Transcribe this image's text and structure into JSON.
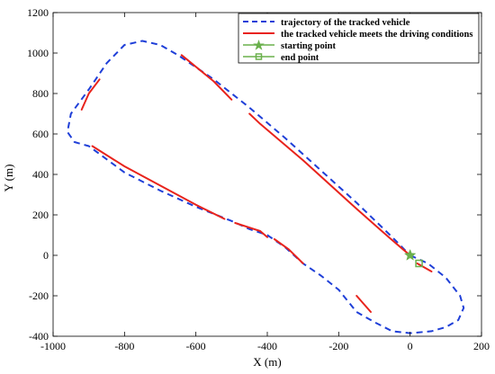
{
  "chart_data": {
    "type": "line",
    "xlabel": "X (m)",
    "ylabel": "Y (m)",
    "xlim": [
      -1000,
      200
    ],
    "ylim": [
      -400,
      1200
    ],
    "xticks": [
      -1000,
      -800,
      -600,
      -400,
      -200,
      0,
      200
    ],
    "yticks": [
      -400,
      -200,
      0,
      200,
      400,
      600,
      800,
      1000,
      1200
    ],
    "legend_position": "top-right",
    "series": [
      {
        "name": "trajectory of the tracked vehicle",
        "style": "dashed",
        "color": "#1f3fd8",
        "points": [
          [
            0,
            0
          ],
          [
            50,
            -40
          ],
          [
            100,
            -110
          ],
          [
            140,
            -200
          ],
          [
            150,
            -260
          ],
          [
            135,
            -320
          ],
          [
            100,
            -355
          ],
          [
            60,
            -375
          ],
          [
            0,
            -385
          ],
          [
            -50,
            -375
          ],
          [
            -100,
            -330
          ],
          [
            -150,
            -280
          ],
          [
            -200,
            -170
          ],
          [
            -250,
            -100
          ],
          [
            -300,
            -40
          ],
          [
            -350,
            40
          ],
          [
            -400,
            100
          ],
          [
            -450,
            130
          ],
          [
            -500,
            170
          ],
          [
            -600,
            240
          ],
          [
            -700,
            320
          ],
          [
            -800,
            410
          ],
          [
            -900,
            540
          ],
          [
            -940,
            560
          ],
          [
            -960,
            610
          ],
          [
            -950,
            700
          ],
          [
            -900,
            820
          ],
          [
            -850,
            950
          ],
          [
            -800,
            1040
          ],
          [
            -750,
            1060
          ],
          [
            -700,
            1040
          ],
          [
            -650,
            990
          ],
          [
            -550,
            870
          ],
          [
            -450,
            730
          ],
          [
            -350,
            580
          ],
          [
            -250,
            420
          ],
          [
            -150,
            260
          ],
          [
            -50,
            90
          ],
          [
            0,
            0
          ]
        ]
      },
      {
        "name": "the tracked vehicle meets the driving conditions",
        "style": "solid",
        "color": "#e8231c",
        "segments": [
          [
            [
              0,
              0
            ],
            [
              -20,
              30
            ],
            [
              -60,
              90
            ],
            [
              -150,
              230
            ],
            [
              -300,
              470
            ],
            [
              -420,
              650
            ],
            [
              -450,
              700
            ]
          ],
          [
            [
              -500,
              770
            ],
            [
              -550,
              860
            ],
            [
              -640,
              990
            ]
          ],
          [
            [
              -920,
              720
            ],
            [
              -900,
              800
            ],
            [
              -870,
              870
            ]
          ],
          [
            [
              -890,
              540
            ],
            [
              -800,
              440
            ],
            [
              -600,
              250
            ],
            [
              -520,
              180
            ]
          ],
          [
            [
              -490,
              160
            ],
            [
              -420,
              120
            ],
            [
              -400,
              90
            ]
          ],
          [
            [
              -380,
              80
            ],
            [
              -340,
              30
            ],
            [
              -300,
              -40
            ]
          ],
          [
            [
              -150,
              -200
            ],
            [
              -110,
              -280
            ]
          ],
          [
            [
              20,
              -40
            ],
            [
              60,
              -80
            ]
          ]
        ]
      }
    ],
    "markers": [
      {
        "name": "starting point",
        "marker": "star",
        "color": "#6ab04c",
        "x": 0,
        "y": 0
      },
      {
        "name": "end point",
        "marker": "square",
        "color": "#6ab04c",
        "x": 25,
        "y": -40
      }
    ]
  }
}
